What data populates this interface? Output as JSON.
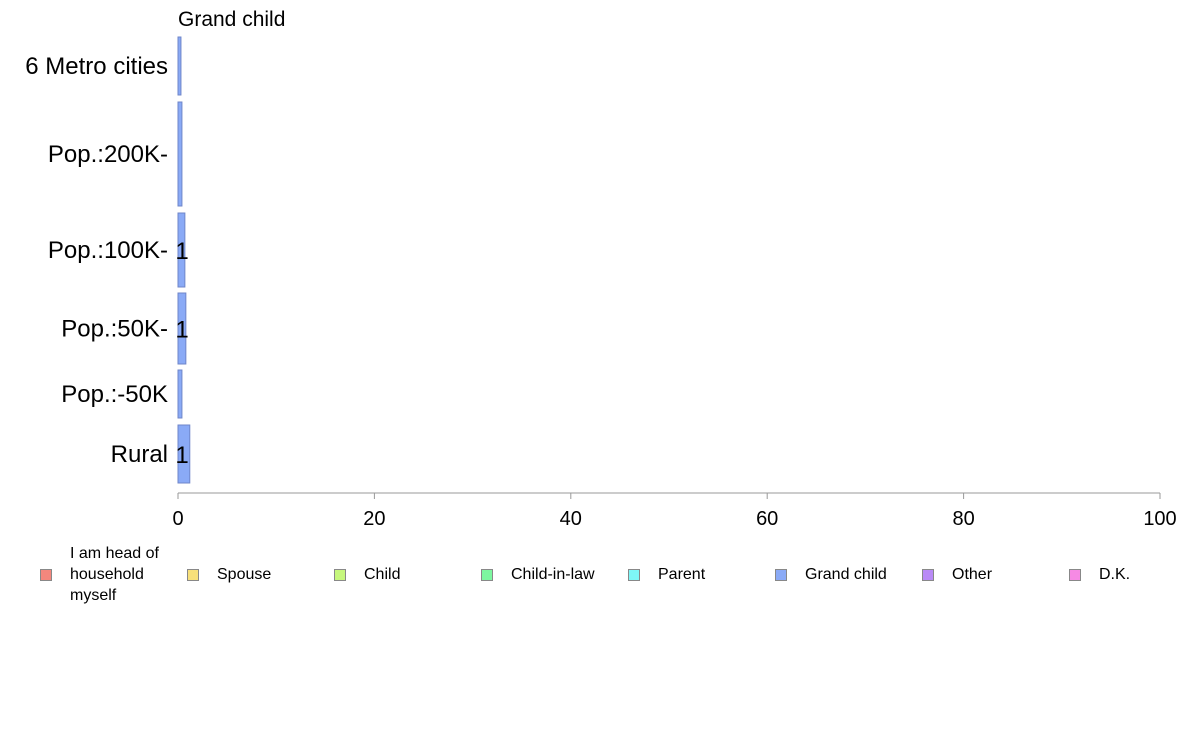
{
  "chart_data": {
    "type": "bar",
    "orientation": "horizontal",
    "panel_title": "Grand child",
    "categories": [
      "6 Metro cities",
      "Pop.:200K-",
      "Pop.:100K-",
      "Pop.:50K-",
      "Pop.:-50K",
      "Rural"
    ],
    "values": [
      0.3,
      0.4,
      0.7,
      0.8,
      0.4,
      1.2
    ],
    "data_labels": [
      "",
      "",
      "1",
      "1",
      "",
      "1"
    ],
    "xlim": [
      0,
      100
    ],
    "x_ticks": [
      "0",
      "20",
      "40",
      "60",
      "80",
      "100"
    ],
    "bar_color": "#8aaaf6",
    "bar_border": "#6f86c9",
    "legend": [
      {
        "label": "I am head of\nhousehold\nmyself",
        "color": "#f4877d"
      },
      {
        "label": "Spouse",
        "color": "#f8e07a"
      },
      {
        "label": "Child",
        "color": "#c6f77d"
      },
      {
        "label": "Child-in-law",
        "color": "#7df7a0"
      },
      {
        "label": "Parent",
        "color": "#7ef7f7"
      },
      {
        "label": "Grand child",
        "color": "#8aaaf6"
      },
      {
        "label": "Other",
        "color": "#b98af6"
      },
      {
        "label": "D.K.",
        "color": "#f68ae4"
      }
    ]
  }
}
